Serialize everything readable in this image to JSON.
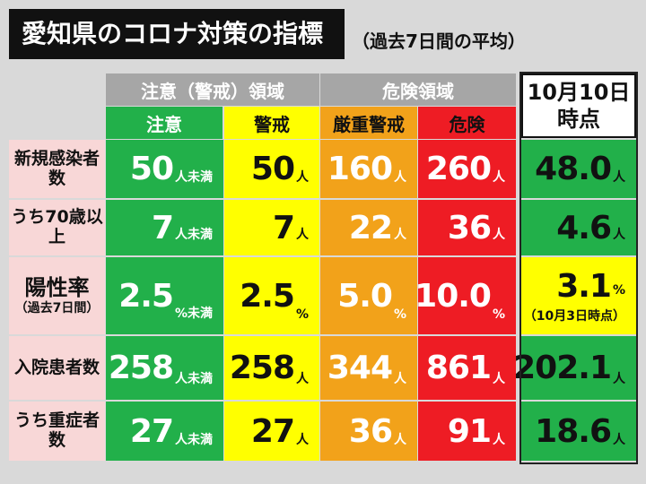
{
  "title": "愛知県のコロナ対策の指標",
  "subtitle": "（過去7日間の平均）",
  "header": {
    "caution_group": "注意（警戒）領域",
    "danger_group": "危険領域",
    "columns": [
      "注意",
      "警戒",
      "厳重警戒",
      "危険"
    ],
    "current_date_line1": "10月10日",
    "current_date_line2": "時点"
  },
  "colors": {
    "caution": "#22b04a",
    "warning": "#ffff00",
    "severe": "#f2a21a",
    "danger": "#ee1c24",
    "row_label": "#f8d7d7",
    "group_header": "#a6a6a6"
  },
  "rows": [
    {
      "label": "新規感染者数",
      "sublabel": "",
      "caution": {
        "num": "50",
        "unit": "人未満"
      },
      "warning": {
        "num": "50",
        "unit": "人"
      },
      "severe": {
        "num": "160",
        "unit": "人"
      },
      "danger": {
        "num": "260",
        "unit": "人"
      },
      "current": {
        "num": "48.0",
        "unit": "人"
      }
    },
    {
      "label": "うち70歳以上",
      "sublabel": "",
      "caution": {
        "num": "7",
        "unit": "人未満"
      },
      "warning": {
        "num": "7",
        "unit": "人"
      },
      "severe": {
        "num": "22",
        "unit": "人"
      },
      "danger": {
        "num": "36",
        "unit": "人"
      },
      "current": {
        "num": "4.6",
        "unit": "人"
      }
    },
    {
      "label": "陽性率",
      "sublabel": "（過去7日間）",
      "caution": {
        "num": "2.5",
        "unit": "%未満"
      },
      "warning": {
        "num": "2.5",
        "unit": "%"
      },
      "severe": {
        "num": "5.0",
        "unit": "%"
      },
      "danger": {
        "num": "10.0",
        "unit": "%"
      },
      "current": {
        "num": "3.1",
        "unit": "%",
        "note": "（10月3日時点）"
      }
    },
    {
      "label": "入院患者数",
      "sublabel": "",
      "caution": {
        "num": "258",
        "unit": "人未満"
      },
      "warning": {
        "num": "258",
        "unit": "人"
      },
      "severe": {
        "num": "344",
        "unit": "人"
      },
      "danger": {
        "num": "861",
        "unit": "人"
      },
      "current": {
        "num": "202.1",
        "unit": "人"
      }
    },
    {
      "label": "うち重症者数",
      "sublabel": "",
      "caution": {
        "num": "27",
        "unit": "人未満"
      },
      "warning": {
        "num": "27",
        "unit": "人"
      },
      "severe": {
        "num": "36",
        "unit": "人"
      },
      "danger": {
        "num": "91",
        "unit": "人"
      },
      "current": {
        "num": "18.6",
        "unit": "人"
      }
    }
  ]
}
